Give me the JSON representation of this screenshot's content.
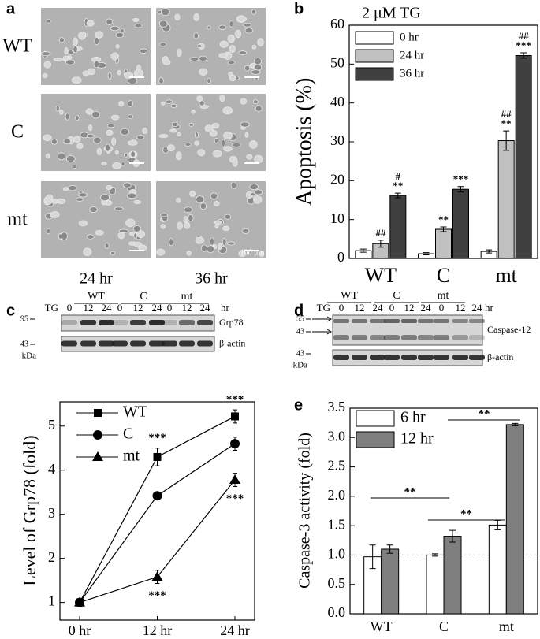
{
  "panel_labels": [
    "a",
    "b",
    "c",
    "d",
    "e"
  ],
  "micrographs": {
    "rows": [
      "WT",
      "C",
      "mt"
    ],
    "columns": [
      "24 hr",
      "36 hr"
    ],
    "scale_bar": "100 μm"
  },
  "blot_c": {
    "groups": [
      "WT",
      "C",
      "mt"
    ],
    "treatment": "TG",
    "lanes": [
      "0",
      "12",
      "24"
    ],
    "unit": "hr",
    "markers": [
      "95",
      "43"
    ],
    "mw_unit": "kDa",
    "bands": [
      "Grp78",
      "β-actin"
    ]
  },
  "blot_d": {
    "groups": [
      "WT",
      "C",
      "mt"
    ],
    "treatment": "TG",
    "lanes": [
      "0",
      "12",
      "24"
    ],
    "unit": "hr",
    "markers": [
      "55",
      "43",
      "43"
    ],
    "mw_unit": "kDa",
    "bands": [
      "Caspase-12",
      "β-actin"
    ]
  },
  "chart_data": [
    {
      "type": "bar",
      "ylabel": "Apoptosis (%)",
      "legend_title": "2 μM TG",
      "legend": "upper left",
      "categories": [
        "WT",
        "C",
        "mt"
      ],
      "series": [
        {
          "name": "0 hr",
          "color": "#ffffff",
          "values": [
            2.0,
            1.2,
            1.8
          ],
          "errors": [
            0.4,
            0.3,
            0.4
          ]
        },
        {
          "name": "24 hr",
          "color": "#c0c0c0",
          "values": [
            3.8,
            7.5,
            30.3
          ],
          "errors": [
            0.9,
            0.6,
            2.5
          ],
          "annotations": [
            [
              "##"
            ],
            [
              "**"
            ],
            [
              "##",
              "**"
            ]
          ]
        },
        {
          "name": "36 hr",
          "color": "#404040",
          "values": [
            16.2,
            17.8,
            52.2
          ],
          "errors": [
            0.6,
            0.7,
            0.7
          ],
          "annotations": [
            [
              "#",
              "**"
            ],
            [
              "***"
            ],
            [
              "##",
              "***"
            ]
          ]
        }
      ],
      "ylim": [
        0,
        60
      ],
      "yticks": [
        0,
        10,
        20,
        30,
        40,
        50,
        60
      ]
    },
    {
      "type": "line",
      "ylabel": "Level of Grp78 (fold)",
      "legend": "upper left",
      "categories": [
        "0 hr",
        "12 hr",
        "24 hr"
      ],
      "series": [
        {
          "name": "WT",
          "color": "#000000",
          "marker": "square",
          "values": [
            1.0,
            4.3,
            5.22
          ],
          "errors": [
            0.05,
            0.2,
            0.15
          ],
          "annotations": [
            null,
            "***",
            "***"
          ]
        },
        {
          "name": "C",
          "color": "#000000",
          "marker": "circle",
          "values": [
            1.0,
            3.42,
            4.6
          ],
          "errors": [
            0.05,
            0.08,
            0.15
          ]
        },
        {
          "name": "mt",
          "color": "#000000",
          "marker": "triangle",
          "values": [
            1.0,
            1.58,
            3.78
          ],
          "errors": [
            0.05,
            0.15,
            0.15
          ],
          "annotations": [
            null,
            "***",
            "***"
          ]
        }
      ],
      "ylim": [
        0.6,
        5.55
      ],
      "yticks": [
        1,
        2,
        3,
        4,
        5
      ]
    },
    {
      "type": "bar",
      "ylabel": "Caspase-3 activity (fold)",
      "legend": "upper left",
      "categories": [
        "WT",
        "C",
        "mt"
      ],
      "series": [
        {
          "name": "6 hr",
          "color": "#ffffff",
          "values": [
            0.97,
            1.0,
            1.51
          ],
          "errors": [
            0.2,
            0.02,
            0.08
          ]
        },
        {
          "name": "12 hr",
          "color": "#7f7f7f",
          "values": [
            1.1,
            1.32,
            3.22
          ],
          "errors": [
            0.07,
            0.1,
            0.02
          ]
        }
      ],
      "reference_line": 1,
      "brackets": [
        "**",
        "**",
        "**"
      ],
      "ylim": [
        0,
        3.5
      ],
      "yticks": [
        {
          "value": 0,
          "label": "0.0"
        },
        0.5,
        {
          "value": 1,
          "label": "1.0"
        },
        1.5,
        {
          "value": 2,
          "label": "2.0"
        },
        2.5,
        {
          "value": 3,
          "label": "3.0"
        },
        3.5
      ]
    }
  ]
}
